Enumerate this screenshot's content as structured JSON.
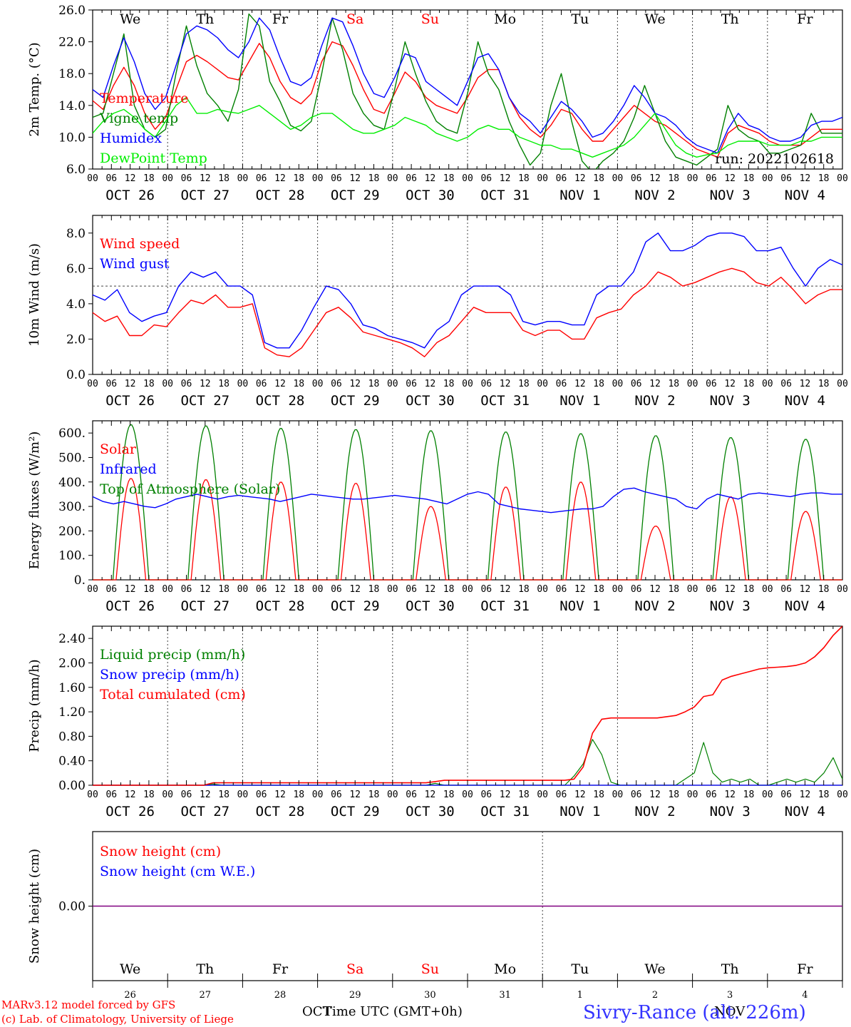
{
  "footer": {
    "model_line": "MARv3.12 model forced by GFS",
    "lab_line": "(c) Lab. of Climatology, University of Liege",
    "xlabel": "Time UTC (GMT+0h)",
    "month_left": "OCT",
    "month_right": "NOV",
    "station": "Sivry-Rance (alt. 226m)"
  },
  "colors": {
    "red": "#ff0000",
    "green": "#008000",
    "blue": "#0000ff",
    "lime": "#00ee00",
    "purple": "#800080"
  },
  "chart_data": [
    {
      "id": "temp",
      "type": "line",
      "ylabel": "2m Temp. (°C)",
      "ylim": [
        6,
        26
      ],
      "yticks": [
        "6.0",
        "10.0",
        "14.0",
        "18.0",
        "22.0",
        "26.0"
      ],
      "day_labels": [
        "We",
        "Th",
        "Fr",
        "Sa",
        "Su",
        "Mo",
        "Tu",
        "We",
        "Th",
        "Fr"
      ],
      "weekend_days": [
        3,
        4
      ],
      "date_labels": [
        "OCT 26",
        "OCT 27",
        "OCT 28",
        "OCT 29",
        "OCT 30",
        "OCT 31",
        "NOV  1",
        "NOV  2",
        "NOV  3",
        "NOV  4"
      ],
      "hour_labels": [
        "00",
        "06",
        "12",
        "18"
      ],
      "run_label": "run: 2022102618",
      "x_hours_step": 6,
      "series": [
        {
          "name": "Temperature",
          "color": "#ff0000",
          "values": [
            14.6,
            13.5,
            16.5,
            18.8,
            16.5,
            13.0,
            11.0,
            12.5,
            16.0,
            19.5,
            20.3,
            19.5,
            18.5,
            17.5,
            17.2,
            19.5,
            21.8,
            20.0,
            17.0,
            15.0,
            14.2,
            15.5,
            19.5,
            22.0,
            21.5,
            19.0,
            16.0,
            13.5,
            13.0,
            15.5,
            18.2,
            17.0,
            15.0,
            14.0,
            13.5,
            13.0,
            15.0,
            17.5,
            18.5,
            18.5,
            15.0,
            12.5,
            11.0,
            10.0,
            11.5,
            13.5,
            13.0,
            11.0,
            9.5,
            9.5,
            11.0,
            12.5,
            14.0,
            13.0,
            12.0,
            11.5,
            10.5,
            9.5,
            8.5,
            8.0,
            7.5,
            10.5,
            11.5,
            11.0,
            10.5,
            9.5,
            9.0,
            9.0,
            9.0,
            10.0,
            11.0,
            11.0,
            11.0
          ]
        },
        {
          "name": "Vigne temp",
          "color": "#008000",
          "values": [
            12.5,
            13.0,
            18.0,
            23.0,
            14.0,
            11.0,
            10.0,
            11.0,
            18.0,
            24.0,
            19.0,
            15.5,
            14.0,
            12.0,
            16.0,
            25.5,
            24.0,
            17.0,
            14.5,
            11.5,
            10.8,
            12.0,
            18.0,
            25.0,
            21.0,
            15.5,
            13.0,
            11.5,
            11.0,
            16.0,
            22.0,
            18.0,
            14.5,
            12.0,
            11.0,
            10.5,
            15.5,
            22.0,
            18.0,
            16.0,
            12.0,
            9.0,
            6.5,
            8.0,
            14.0,
            18.0,
            12.0,
            7.0,
            5.5,
            7.0,
            8.0,
            9.5,
            12.5,
            16.5,
            13.0,
            9.5,
            7.5,
            7.0,
            6.5,
            7.5,
            8.5,
            14.0,
            11.0,
            10.0,
            9.5,
            8.0,
            8.0,
            8.5,
            9.0,
            13.0,
            10.5,
            10.5,
            10.5
          ]
        },
        {
          "name": "Humidex",
          "color": "#0000ff",
          "values": [
            16.0,
            15.0,
            19.0,
            22.5,
            19.5,
            15.5,
            13.5,
            15.0,
            19.0,
            23.0,
            24.0,
            23.5,
            22.5,
            21.0,
            20.0,
            22.0,
            25.0,
            23.5,
            20.0,
            17.0,
            16.5,
            17.5,
            21.5,
            25.0,
            24.5,
            21.5,
            18.0,
            15.5,
            15.0,
            17.5,
            20.5,
            20.0,
            17.0,
            16.0,
            15.0,
            14.0,
            17.0,
            20.0,
            20.5,
            18.5,
            15.0,
            13.0,
            12.0,
            10.5,
            12.5,
            14.5,
            13.5,
            12.0,
            10.0,
            10.5,
            12.0,
            14.0,
            16.5,
            15.0,
            13.0,
            12.5,
            11.5,
            10.0,
            9.0,
            8.5,
            8.0,
            11.0,
            13.0,
            11.5,
            11.0,
            10.0,
            9.5,
            9.5,
            10.0,
            11.5,
            12.0,
            12.0,
            12.5
          ]
        },
        {
          "name": "DewPoint Temp",
          "color": "#00ee00",
          "values": [
            10.5,
            12.0,
            13.0,
            13.5,
            12.5,
            11.0,
            10.0,
            12.0,
            14.0,
            15.0,
            13.0,
            13.0,
            13.5,
            13.2,
            13.0,
            13.5,
            14.0,
            13.0,
            12.0,
            11.0,
            11.5,
            12.5,
            13.0,
            13.0,
            12.0,
            11.0,
            10.5,
            10.5,
            11.0,
            11.5,
            12.5,
            12.0,
            11.5,
            10.5,
            10.0,
            9.5,
            10.0,
            11.0,
            11.5,
            11.0,
            11.0,
            10.0,
            9.5,
            9.0,
            9.0,
            8.5,
            8.5,
            8.0,
            7.5,
            8.0,
            8.5,
            9.0,
            10.0,
            11.5,
            13.0,
            11.0,
            9.0,
            8.0,
            7.5,
            7.8,
            8.0,
            9.0,
            9.5,
            9.5,
            9.5,
            9.0,
            9.0,
            9.0,
            9.5,
            9.5,
            10.0,
            10.0,
            10.0
          ]
        }
      ]
    },
    {
      "id": "wind",
      "type": "line",
      "ylabel": "10m Wind (m/s)",
      "ylim": [
        0,
        9
      ],
      "yticks": [
        "0.0",
        "2.0",
        "4.0",
        "6.0",
        "8.0"
      ],
      "ref_line": 5,
      "date_labels": [
        "OCT 26",
        "OCT 27",
        "OCT 28",
        "OCT 29",
        "OCT 30",
        "OCT 31",
        "NOV  1",
        "NOV  2",
        "NOV  3",
        "NOV  4"
      ],
      "hour_labels": [
        "00",
        "06",
        "12",
        "18"
      ],
      "x_hours_step": 6,
      "series": [
        {
          "name": "Wind speed",
          "color": "#ff0000",
          "values": [
            3.5,
            3.0,
            3.3,
            2.2,
            2.2,
            2.8,
            2.7,
            3.5,
            4.2,
            4.0,
            4.5,
            3.8,
            3.8,
            4.0,
            1.5,
            1.1,
            1.0,
            1.5,
            2.5,
            3.5,
            3.8,
            3.2,
            2.4,
            2.2,
            2.0,
            1.8,
            1.5,
            1.0,
            1.8,
            2.2,
            3.0,
            3.8,
            3.5,
            3.5,
            3.5,
            2.5,
            2.2,
            2.5,
            2.5,
            2.0,
            2.0,
            3.2,
            3.5,
            3.7,
            4.5,
            5.0,
            5.8,
            5.5,
            5.0,
            5.2,
            5.5,
            5.8,
            6.0,
            5.8,
            5.2,
            5.0,
            5.5,
            4.8,
            4.0,
            4.5,
            4.8,
            4.8
          ]
        },
        {
          "name": "Wind gust",
          "color": "#0000ff",
          "values": [
            4.5,
            4.2,
            4.8,
            3.5,
            3.0,
            3.3,
            3.5,
            5.0,
            5.8,
            5.5,
            5.8,
            5.0,
            5.0,
            4.5,
            1.8,
            1.5,
            1.5,
            2.5,
            3.8,
            5.0,
            4.8,
            4.0,
            2.8,
            2.6,
            2.2,
            2.0,
            1.8,
            1.5,
            2.5,
            3.0,
            4.5,
            5.0,
            5.0,
            5.0,
            4.5,
            3.0,
            2.8,
            3.0,
            3.0,
            2.8,
            2.8,
            4.5,
            5.0,
            5.0,
            5.8,
            7.5,
            8.0,
            7.0,
            7.0,
            7.3,
            7.8,
            8.0,
            8.0,
            7.8,
            7.0,
            7.0,
            7.2,
            6.0,
            5.0,
            6.0,
            6.5,
            6.2
          ]
        }
      ]
    },
    {
      "id": "energy",
      "type": "line",
      "ylabel": "Energy fluxes (W/m²)",
      "ylim": [
        0,
        650
      ],
      "yticks": [
        "0.",
        "100.",
        "200.",
        "300.",
        "400.",
        "500.",
        "600."
      ],
      "date_labels": [
        "OCT 26",
        "OCT 27",
        "OCT 28",
        "OCT 29",
        "OCT 30",
        "OCT 31",
        "NOV  1",
        "NOV  2",
        "NOV  3",
        "NOV  4"
      ],
      "hour_labels": [
        "00",
        "06",
        "12",
        "18"
      ],
      "x_hours_step": 6,
      "daily_peaks": {
        "toa": [
          635,
          630,
          620,
          615,
          610,
          605,
          598,
          590,
          582,
          575
        ],
        "solar": [
          415,
          410,
          400,
          395,
          300,
          380,
          400,
          220,
          340,
          280
        ]
      },
      "series": [
        {
          "name": "Solar",
          "color": "#ff0000"
        },
        {
          "name": "Infrared",
          "color": "#0000ff",
          "values": [
            340,
            320,
            310,
            320,
            310,
            300,
            295,
            310,
            330,
            340,
            350,
            340,
            330,
            340,
            345,
            340,
            335,
            330,
            320,
            330,
            340,
            350,
            345,
            340,
            335,
            330,
            330,
            335,
            340,
            345,
            340,
            335,
            330,
            320,
            310,
            330,
            350,
            360,
            350,
            310,
            300,
            290,
            285,
            280,
            275,
            280,
            285,
            290,
            290,
            300,
            340,
            370,
            375,
            360,
            350,
            340,
            330,
            300,
            290,
            330,
            350,
            340,
            330,
            350,
            355,
            350,
            345,
            340,
            350,
            355,
            355,
            350,
            350
          ]
        },
        {
          "name": "Top of Atmosphere (Solar)",
          "color": "#008000"
        }
      ]
    },
    {
      "id": "precip",
      "type": "line",
      "ylabel": "Precip (mm/h)",
      "ylim": [
        0,
        2.6
      ],
      "yticks": [
        "0.00",
        "0.40",
        "0.80",
        "1.20",
        "1.60",
        "2.00",
        "2.40"
      ],
      "date_labels": [
        "OCT 26",
        "OCT 27",
        "OCT 28",
        "OCT 29",
        "OCT 30",
        "OCT 31",
        "NOV  1",
        "NOV  2",
        "NOV  3",
        "NOV  4"
      ],
      "hour_labels": [
        "00",
        "06",
        "12",
        "18"
      ],
      "x_hours_step": 6,
      "series": [
        {
          "name": "Liquid precip (mm/h)",
          "color": "#008000",
          "values": [
            0,
            0,
            0,
            0,
            0,
            0,
            0,
            0,
            0,
            0,
            0,
            0,
            0,
            0.02,
            0,
            0,
            0,
            0,
            0,
            0,
            0,
            0,
            0,
            0,
            0,
            0,
            0,
            0,
            0,
            0,
            0,
            0,
            0,
            0,
            0,
            0,
            0,
            0.03,
            0,
            0,
            0,
            0,
            0,
            0,
            0,
            0,
            0,
            0,
            0,
            0,
            0,
            0,
            0.15,
            0.35,
            0.75,
            0.5,
            0.05,
            0,
            0,
            0,
            0,
            0,
            0,
            0,
            0.1,
            0.2,
            0.7,
            0.2,
            0.05,
            0.1,
            0.05,
            0.1,
            0,
            0,
            0.05,
            0.1,
            0.05,
            0.1,
            0.05,
            0.2,
            0.45,
            0.1
          ]
        },
        {
          "name": "Snow precip (mm/h)",
          "color": "#0000ff",
          "values": [
            0,
            0
          ]
        },
        {
          "name": "Total cumulated (cm)",
          "color": "#ff0000",
          "values": [
            0,
            0,
            0,
            0,
            0,
            0,
            0,
            0,
            0,
            0,
            0,
            0,
            0,
            0.04,
            0.04,
            0.04,
            0.04,
            0.04,
            0.04,
            0.04,
            0.04,
            0.04,
            0.04,
            0.04,
            0.04,
            0.04,
            0.04,
            0.04,
            0.04,
            0.04,
            0.04,
            0.04,
            0.04,
            0.04,
            0.04,
            0.04,
            0.04,
            0.06,
            0.08,
            0.08,
            0.08,
            0.08,
            0.08,
            0.08,
            0.08,
            0.08,
            0.08,
            0.08,
            0.08,
            0.08,
            0.08,
            0.08,
            0.1,
            0.3,
            0.85,
            1.08,
            1.1,
            1.1,
            1.1,
            1.1,
            1.1,
            1.1,
            1.12,
            1.14,
            1.2,
            1.28,
            1.45,
            1.48,
            1.72,
            1.78,
            1.82,
            1.86,
            1.9,
            1.92,
            1.93,
            1.94,
            1.96,
            2.0,
            2.1,
            2.25,
            2.45,
            2.6
          ]
        }
      ]
    },
    {
      "id": "snow",
      "type": "line",
      "ylabel": "Snow height (cm)",
      "yticks": [
        "0.00"
      ],
      "day_labels": [
        "We",
        "Th",
        "Fr",
        "Sa",
        "Su",
        "Mo",
        "Tu",
        "We",
        "Th",
        "Fr"
      ],
      "weekend_days": [
        3,
        4
      ],
      "day_numbers": [
        "26",
        "27",
        "28",
        "29",
        "30",
        "31",
        "1",
        "2",
        "3",
        "4"
      ],
      "series": [
        {
          "name": "Snow height (cm)",
          "color": "#ff0000",
          "values": [
            0,
            0
          ]
        },
        {
          "name": "Snow height (cm W.E.)",
          "color": "#0000ff",
          "values": [
            0,
            0
          ]
        }
      ]
    }
  ]
}
